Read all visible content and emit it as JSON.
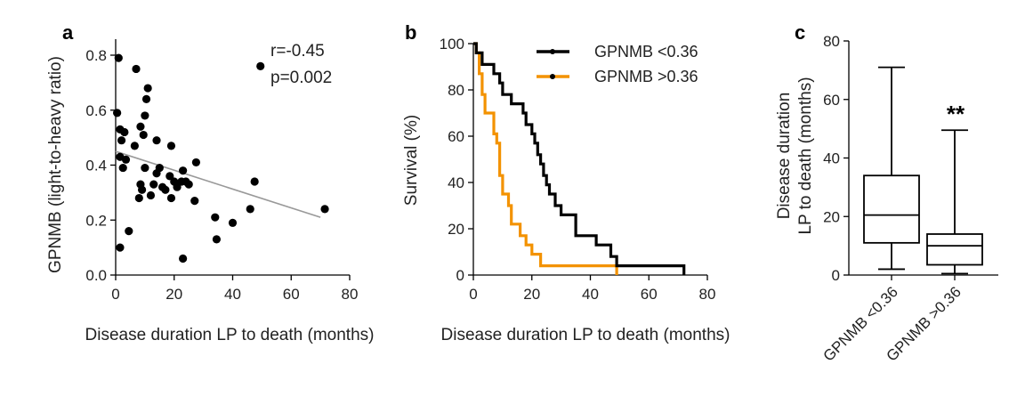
{
  "chart_data": [
    {
      "panel": "a",
      "type": "scatter",
      "xlabel": "Disease duration LP to death (months)",
      "ylabel": "GPNMB (light-to-heavy ratio)",
      "xlim": [
        0,
        80
      ],
      "ylim": [
        0,
        0.8
      ],
      "xticks": [
        "0",
        "20",
        "40",
        "60",
        "80"
      ],
      "yticks": [
        "0.0",
        "0.2",
        "0.4",
        "0.6",
        "0.8"
      ],
      "annotations": [
        "r=-0.45",
        "p=0.002"
      ],
      "points": [
        [
          1,
          0.79
        ],
        [
          7,
          0.75
        ],
        [
          49.5,
          0.76
        ],
        [
          11,
          0.68
        ],
        [
          10.5,
          0.64
        ],
        [
          10,
          0.58
        ],
        [
          0.5,
          0.59
        ],
        [
          8.5,
          0.54
        ],
        [
          1.5,
          0.53
        ],
        [
          3,
          0.52
        ],
        [
          9.5,
          0.51
        ],
        [
          2,
          0.49
        ],
        [
          6.5,
          0.47
        ],
        [
          19,
          0.47
        ],
        [
          14,
          0.49
        ],
        [
          1.5,
          0.43
        ],
        [
          3.5,
          0.42
        ],
        [
          27.5,
          0.41
        ],
        [
          10,
          0.39
        ],
        [
          2.5,
          0.39
        ],
        [
          15,
          0.39
        ],
        [
          14,
          0.37
        ],
        [
          23,
          0.38
        ],
        [
          18.5,
          0.36
        ],
        [
          20,
          0.34
        ],
        [
          22.5,
          0.34
        ],
        [
          25,
          0.33
        ],
        [
          13,
          0.33
        ],
        [
          16,
          0.32
        ],
        [
          8.5,
          0.33
        ],
        [
          9,
          0.31
        ],
        [
          17,
          0.31
        ],
        [
          21,
          0.32
        ],
        [
          24,
          0.34
        ],
        [
          12,
          0.29
        ],
        [
          19,
          0.28
        ],
        [
          8,
          0.28
        ],
        [
          27,
          0.27
        ],
        [
          34,
          0.21
        ],
        [
          40,
          0.19
        ],
        [
          46,
          0.24
        ],
        [
          47.5,
          0.34
        ],
        [
          71.5,
          0.24
        ],
        [
          4.5,
          0.16
        ],
        [
          34.5,
          0.13
        ],
        [
          1.5,
          0.1
        ],
        [
          23,
          0.06
        ]
      ],
      "fit_line": {
        "x": [
          0,
          70
        ],
        "y": [
          0.45,
          0.21
        ]
      }
    },
    {
      "panel": "b",
      "type": "line",
      "xlabel": "Disease duration LP to death (months)",
      "ylabel": "Survival (%)",
      "xlim": [
        0,
        80
      ],
      "ylim": [
        0,
        100
      ],
      "xticks": [
        "0",
        "20",
        "40",
        "60",
        "80"
      ],
      "yticks": [
        "0",
        "20",
        "40",
        "60",
        "80",
        "100"
      ],
      "series": [
        {
          "name": "GPNMB <0.36",
          "color": "#000000",
          "steps": [
            [
              0,
              100
            ],
            [
              1,
              100
            ],
            [
              1,
              96
            ],
            [
              3,
              96
            ],
            [
              3,
              91
            ],
            [
              7,
              91
            ],
            [
              7,
              87
            ],
            [
              9,
              87
            ],
            [
              9,
              83
            ],
            [
              10,
              83
            ],
            [
              10,
              78
            ],
            [
              13,
              78
            ],
            [
              13,
              74
            ],
            [
              17,
              74
            ],
            [
              17,
              70
            ],
            [
              18,
              70
            ],
            [
              18,
              65
            ],
            [
              20,
              65
            ],
            [
              20,
              61
            ],
            [
              21,
              61
            ],
            [
              21,
              57
            ],
            [
              22,
              57
            ],
            [
              22,
              52
            ],
            [
              23,
              52
            ],
            [
              23,
              48
            ],
            [
              24,
              48
            ],
            [
              24,
              43
            ],
            [
              25,
              43
            ],
            [
              25,
              39
            ],
            [
              26,
              39
            ],
            [
              26,
              35
            ],
            [
              28,
              35
            ],
            [
              28,
              30
            ],
            [
              30,
              30
            ],
            [
              30,
              26
            ],
            [
              35,
              26
            ],
            [
              35,
              17
            ],
            [
              42,
              17
            ],
            [
              42,
              13
            ],
            [
              47,
              13
            ],
            [
              47,
              8
            ],
            [
              49,
              8
            ],
            [
              49,
              4
            ],
            [
              72,
              4
            ],
            [
              72,
              0
            ]
          ]
        },
        {
          "name": "GPNMB >0.36",
          "color": "#f39200",
          "steps": [
            [
              0,
              100
            ],
            [
              1,
              100
            ],
            [
              1,
              96
            ],
            [
              2,
              96
            ],
            [
              2,
              87
            ],
            [
              3,
              87
            ],
            [
              3,
              78
            ],
            [
              4,
              78
            ],
            [
              4,
              70
            ],
            [
              7,
              70
            ],
            [
              7,
              61
            ],
            [
              8,
              61
            ],
            [
              8,
              57
            ],
            [
              9,
              57
            ],
            [
              9,
              43
            ],
            [
              10,
              43
            ],
            [
              10,
              35
            ],
            [
              12,
              35
            ],
            [
              12,
              30
            ],
            [
              13,
              30
            ],
            [
              13,
              22
            ],
            [
              16,
              22
            ],
            [
              16,
              17
            ],
            [
              18,
              17
            ],
            [
              18,
              13
            ],
            [
              20,
              13
            ],
            [
              20,
              9
            ],
            [
              23,
              9
            ],
            [
              23,
              4
            ],
            [
              49,
              4
            ],
            [
              49,
              0
            ]
          ]
        }
      ],
      "legend_position": "top-right"
    },
    {
      "panel": "c",
      "type": "box",
      "ylabel_line1": "Disease duration",
      "ylabel_line2": "LP to death (months)",
      "ylim": [
        0,
        80
      ],
      "yticks": [
        "0",
        "20",
        "40",
        "60",
        "80"
      ],
      "categories": [
        "GPNMB <0.36",
        "GPNMB >0.36"
      ],
      "boxes": [
        {
          "min": 2,
          "q1": 11,
          "median": 20.5,
          "q3": 34,
          "max": 71
        },
        {
          "min": 0.5,
          "q1": 3.5,
          "median": 10,
          "q3": 14,
          "max": 49.5
        }
      ],
      "significance": "**"
    }
  ]
}
